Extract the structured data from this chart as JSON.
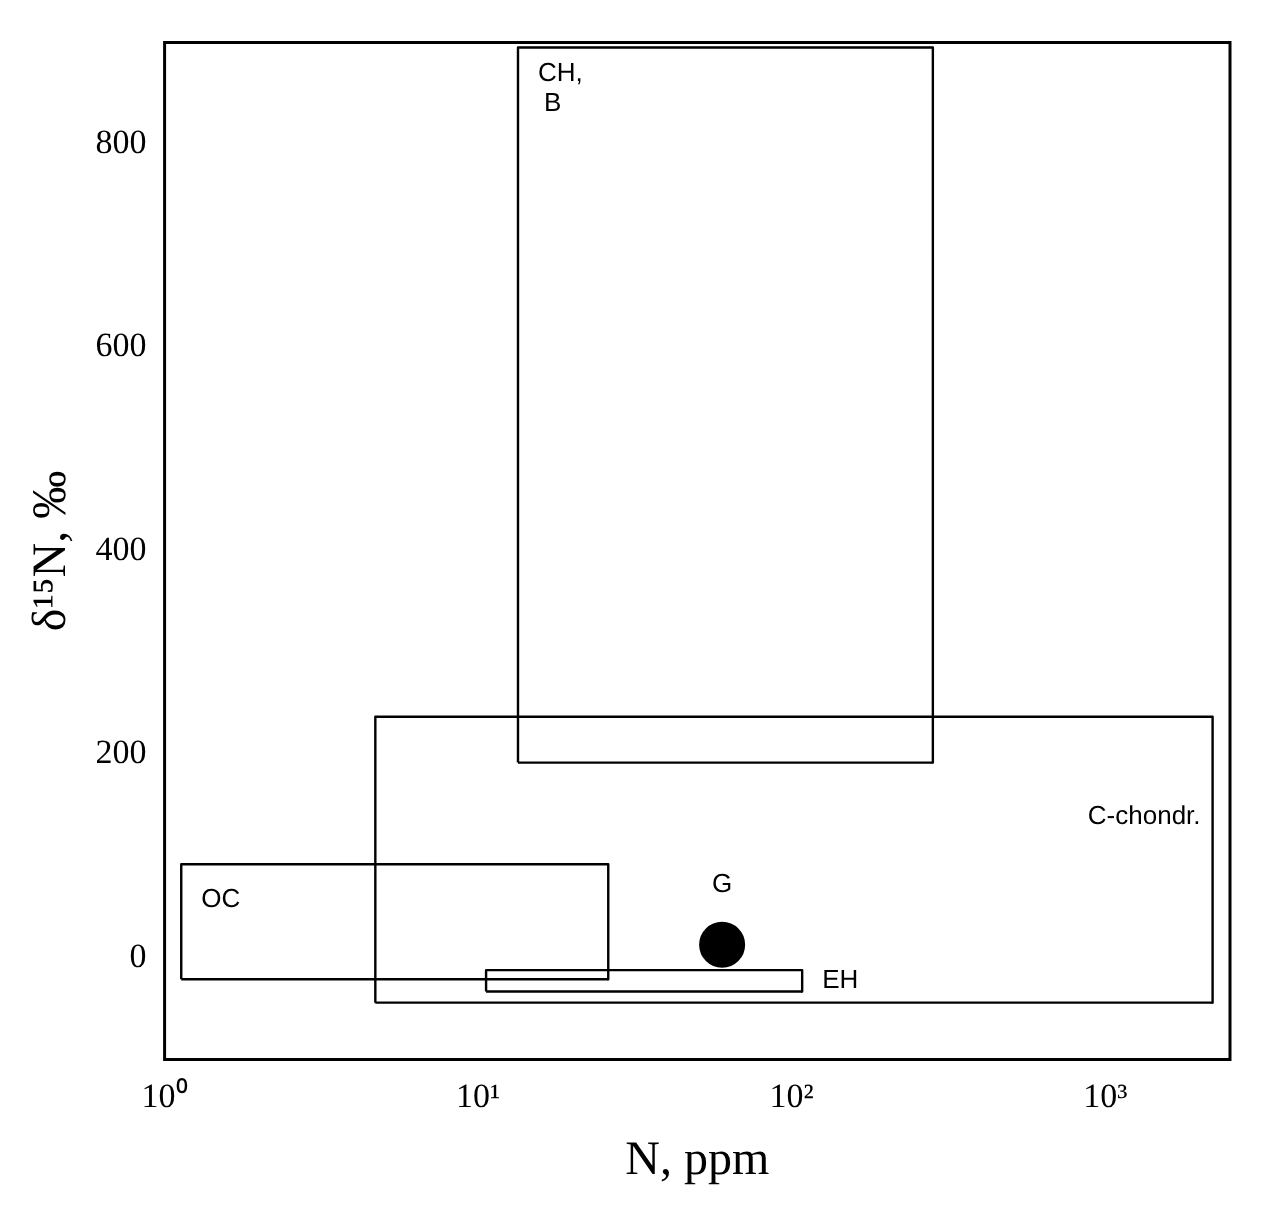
{
  "chart_data": {
    "type": "scatter",
    "xlabel": "N, ppm",
    "ylabel": "δ¹⁵N, ‰",
    "log": "x",
    "xlim": [
      1,
      2500
    ],
    "xticks": [
      {
        "value": 1,
        "label": "10⁰"
      },
      {
        "value": 10,
        "label": "10¹"
      },
      {
        "value": 100,
        "label": "10²"
      },
      {
        "value": 1000,
        "label": "10³"
      }
    ],
    "ylim": [
      -100,
      900
    ],
    "yticks": [
      0,
      200,
      400,
      600,
      800
    ],
    "grid": false,
    "legend": false,
    "series": [
      {
        "name": "CH, B",
        "type": "line",
        "color": "#000000",
        "marker": "none",
        "x": [
          13.4,
          13.4,
          282,
          282
        ],
        "values": [
          192,
          895,
          895,
          192
        ]
      },
      {
        "type": "line",
        "color": "#000000",
        "marker": "none",
        "x": [
          13.4,
          282
        ],
        "values": [
          192,
          192
        ]
      },
      {
        "name": "C-chondr.",
        "type": "line",
        "color": "#000000",
        "marker": "none",
        "x": [
          4.7,
          4.7,
          2200,
          2200
        ],
        "values": [
          -44,
          237,
          237,
          -44
        ]
      },
      {
        "type": "line",
        "color": "#000000",
        "marker": "none",
        "x": [
          4.7,
          2200
        ],
        "values": [
          -44,
          -44
        ]
      },
      {
        "name": "OC",
        "type": "line",
        "color": "#000000",
        "marker": "none",
        "x": [
          1.13,
          1.13,
          26,
          26
        ],
        "values": [
          -21,
          92,
          92,
          -21
        ]
      },
      {
        "type": "line",
        "color": "#000000",
        "marker": "none",
        "x": [
          1.13,
          26
        ],
        "values": [
          -21,
          -21
        ]
      },
      {
        "name": "EH",
        "type": "line",
        "color": "#000000",
        "marker": "none",
        "x": [
          10.6,
          10.6,
          108,
          108
        ],
        "values": [
          -33,
          -12,
          -12,
          -33
        ]
      },
      {
        "type": "line",
        "color": "#000000",
        "marker": "none",
        "x": [
          10.6,
          108
        ],
        "values": [
          -33,
          -33
        ]
      },
      {
        "name": "G",
        "type": "scatter",
        "color": "#000000",
        "marker": "circle",
        "x": [
          60
        ],
        "values": [
          13
        ]
      }
    ]
  }
}
